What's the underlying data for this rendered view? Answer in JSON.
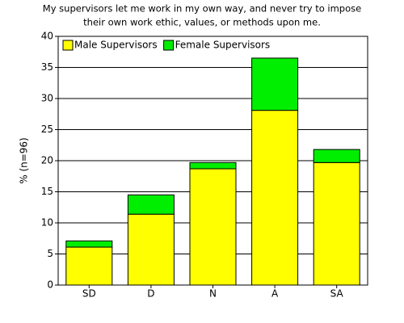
{
  "chart_data": {
    "type": "stacked_bar",
    "title_lines": [
      "My supervisors let me work in my own way, and never try to impose",
      "their own work ethic, values, or methods upon me."
    ],
    "y_label": "% (n=96)",
    "categories": [
      "SD",
      "D",
      "N",
      "A",
      "SA"
    ],
    "series": [
      {
        "name": "Male Supervisors",
        "color": "#ffff00",
        "values": [
          6.1,
          11.4,
          18.7,
          28.1,
          19.7
        ]
      },
      {
        "name": "Female Supervisors",
        "color": "#00ee00",
        "values": [
          1.0,
          3.1,
          1.0,
          8.4,
          2.1
        ]
      }
    ],
    "ylim": [
      0,
      40
    ],
    "yticks": [
      0,
      5,
      10,
      15,
      20,
      25,
      30,
      35,
      40
    ],
    "grid": true,
    "legend": "top-left"
  }
}
